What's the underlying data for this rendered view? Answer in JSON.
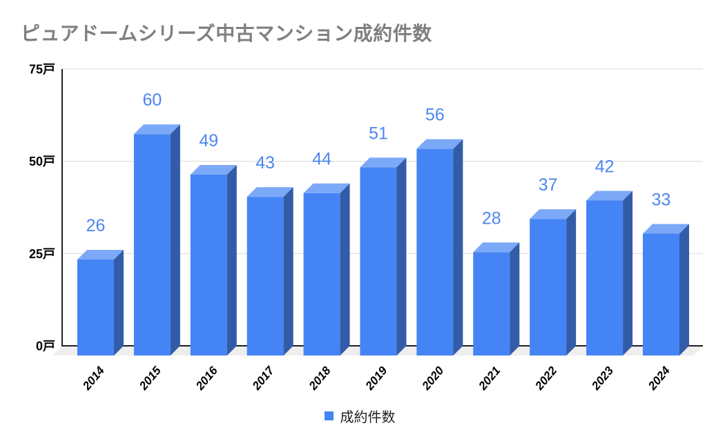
{
  "title": "ピュアドームシリーズ中古マンション成約件数",
  "legend": {
    "label": "成約件数",
    "swatch_color": "#4285F4"
  },
  "chart_data": {
    "type": "bar",
    "style": "3d-column",
    "title": "ピュアドームシリーズ中古マンション成約件数",
    "categories": [
      "2014",
      "2015",
      "2016",
      "2017",
      "2018",
      "2019",
      "2020",
      "2021",
      "2022",
      "2023",
      "2024"
    ],
    "series": [
      {
        "name": "成約件数",
        "values": [
          26,
          60,
          49,
          43,
          44,
          51,
          56,
          28,
          37,
          42,
          33
        ]
      }
    ],
    "xlabel": "",
    "ylabel": "",
    "ylim": [
      0,
      75
    ],
    "unit_suffix": "戸",
    "y_ticks": [
      {
        "value": 75,
        "label": "75戸"
      },
      {
        "value": 50,
        "label": "50戸"
      },
      {
        "value": 25,
        "label": "25戸"
      },
      {
        "value": 0,
        "label": "0戸"
      }
    ],
    "grid": true,
    "legend_position": "bottom",
    "data_labels_visible": true,
    "colors": {
      "bar_front": "#4584F4",
      "bar_top": "#7CA9F7",
      "bar_side": "#335CA8",
      "data_label": "#4C86F0",
      "gridline": "#D9D9D9",
      "axis_line": "#1F1F1F",
      "floor": "#EEEEEE",
      "title_text": "#7F7F7F",
      "tick_label": "#000000"
    }
  }
}
